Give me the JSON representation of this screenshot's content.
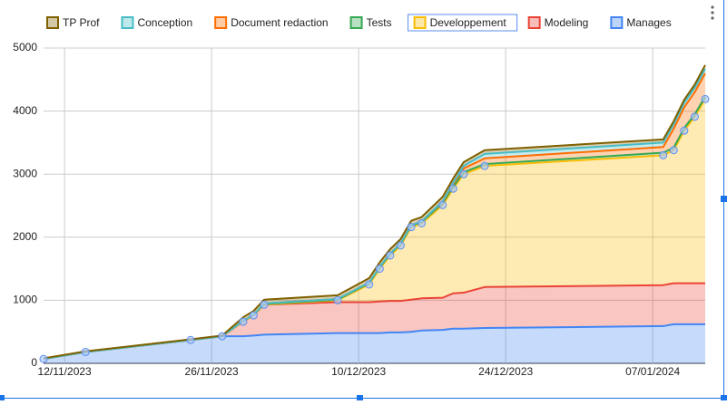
{
  "chart_data": {
    "type": "stacked_area",
    "x": [
      "2023-11-10",
      "2023-11-14",
      "2023-11-24",
      "2023-11-27",
      "2023-11-29",
      "2023-11-30",
      "2023-12-01",
      "2023-12-08",
      "2023-12-11",
      "2023-12-12",
      "2023-12-13",
      "2023-12-14",
      "2023-12-15",
      "2023-12-16",
      "2023-12-18",
      "2023-12-19",
      "2023-12-20",
      "2023-12-22",
      "2024-01-08",
      "2024-01-09",
      "2024-01-10",
      "2024-01-11",
      "2024-01-12"
    ],
    "series": [
      {
        "name": "Manages",
        "color": "#4285f4",
        "values": [
          70,
          180,
          370,
          430,
          430,
          440,
          455,
          480,
          480,
          480,
          490,
          490,
          500,
          520,
          530,
          550,
          550,
          560,
          590,
          620,
          620,
          620,
          620
        ]
      },
      {
        "name": "Modeling",
        "color": "#ea4335",
        "values": [
          0,
          0,
          0,
          0,
          230,
          320,
          475,
          490,
          490,
          500,
          500,
          500,
          510,
          510,
          510,
          560,
          570,
          650,
          650,
          650,
          650,
          650,
          650
        ]
      },
      {
        "name": "Developpement",
        "color": "#fbbc04",
        "values": [
          0,
          0,
          0,
          0,
          0,
          0,
          0,
          30,
          280,
          520,
          720,
          880,
          1150,
          1190,
          1470,
          1660,
          1880,
          1920,
          2060,
          2110,
          2420,
          2640,
          2920
        ]
      },
      {
        "name": "Tests",
        "color": "#34a853",
        "values": [
          0,
          0,
          0,
          0,
          10,
          10,
          10,
          10,
          20,
          20,
          20,
          20,
          20,
          20,
          30,
          30,
          30,
          30,
          40,
          40,
          40,
          40,
          40
        ]
      },
      {
        "name": "Document redaction",
        "color": "#ff6d01",
        "values": [
          0,
          0,
          0,
          0,
          0,
          0,
          10,
          10,
          10,
          10,
          10,
          10,
          10,
          10,
          20,
          40,
          60,
          90,
          90,
          300,
          330,
          350,
          370
        ]
      },
      {
        "name": "Conception",
        "color": "#46bdc6",
        "values": [
          0,
          0,
          0,
          0,
          0,
          0,
          0,
          0,
          0,
          0,
          0,
          0,
          0,
          0,
          10,
          20,
          40,
          70,
          70,
          70,
          70,
          70,
          70
        ]
      },
      {
        "name": "TP Prof",
        "color": "#7f6000",
        "values": [
          10,
          10,
          10,
          10,
          60,
          60,
          60,
          60,
          70,
          70,
          70,
          70,
          70,
          70,
          70,
          70,
          60,
          60,
          50,
          50,
          50,
          50,
          60
        ]
      }
    ],
    "legend_order": [
      6,
      5,
      4,
      3,
      2,
      1,
      0
    ],
    "selected_series": "Developpement",
    "xlim": [
      "2023-11-10",
      "2024-01-12"
    ],
    "xticks": [
      {
        "value": "2023-11-12",
        "label": "12/11/2023"
      },
      {
        "value": "2023-11-26",
        "label": "26/11/2023"
      },
      {
        "value": "2023-12-10",
        "label": "10/12/2023"
      },
      {
        "value": "2023-12-24",
        "label": "24/12/2023"
      },
      {
        "value": "2024-01-07",
        "label": "07/01/2024"
      }
    ],
    "ylim": [
      0,
      5000
    ],
    "yticks": [
      0,
      1000,
      2000,
      3000,
      4000,
      5000
    ],
    "grid": true,
    "legend": "top"
  }
}
